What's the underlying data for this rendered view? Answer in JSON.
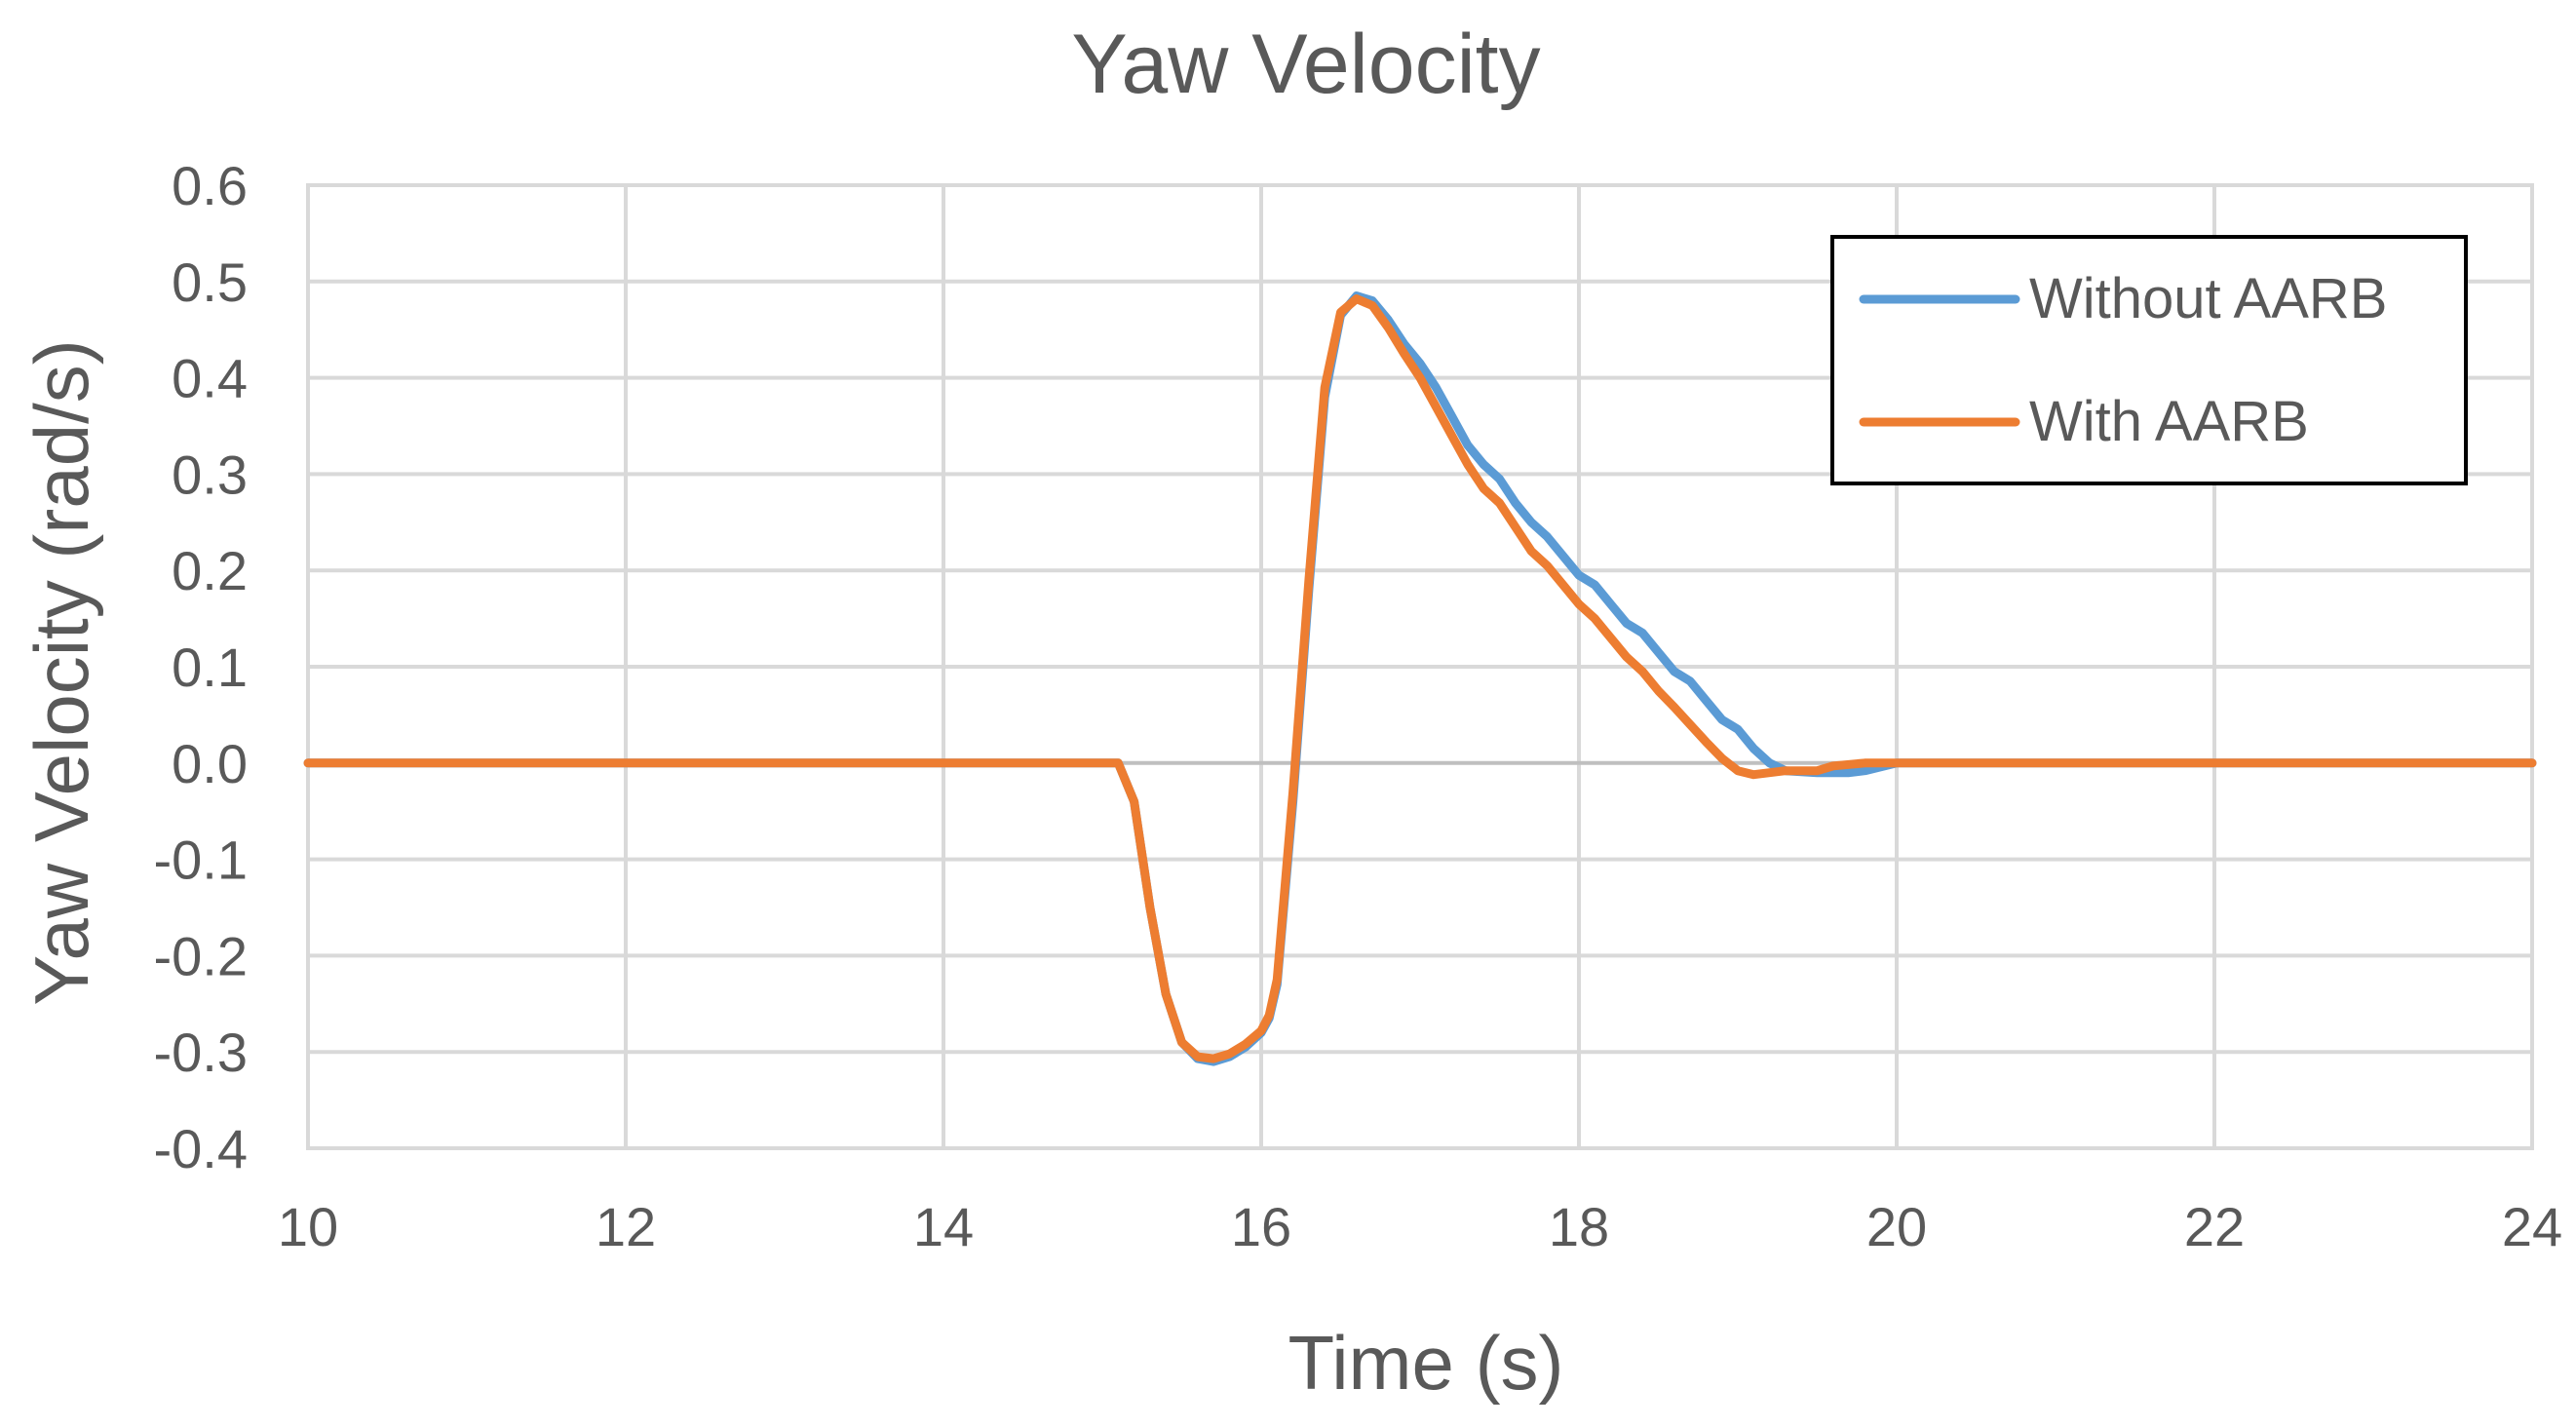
{
  "chart_data": {
    "type": "line",
    "title": "Yaw Velocity",
    "xlabel": "Time (s)",
    "ylabel": "Yaw Velocity (rad/s)",
    "xlim": [
      10,
      24
    ],
    "ylim": [
      -0.4,
      0.6
    ],
    "xticks": [
      10,
      12,
      14,
      16,
      18,
      20,
      22,
      24
    ],
    "xtick_labels": [
      "10",
      "12",
      "14",
      "16",
      "18",
      "20",
      "22",
      "24"
    ],
    "yticks": [
      -0.4,
      -0.3,
      -0.2,
      -0.1,
      0.0,
      0.1,
      0.2,
      0.3,
      0.4,
      0.5,
      0.6
    ],
    "ytick_labels": [
      "-0.4",
      "-0.3",
      "-0.2",
      "-0.1",
      "0.0",
      "0.1",
      "0.2",
      "0.3",
      "0.4",
      "0.5",
      "0.6"
    ],
    "grid": true,
    "legend_position": "top-right",
    "series": [
      {
        "name": "Without AARB",
        "color": "#5b9bd5",
        "points": [
          [
            10,
            0
          ],
          [
            15.0,
            0
          ],
          [
            15.1,
            0
          ],
          [
            15.2,
            -0.04
          ],
          [
            15.3,
            -0.15
          ],
          [
            15.4,
            -0.24
          ],
          [
            15.5,
            -0.29
          ],
          [
            15.6,
            -0.307
          ],
          [
            15.7,
            -0.31
          ],
          [
            15.8,
            -0.305
          ],
          [
            15.9,
            -0.295
          ],
          [
            16.0,
            -0.28
          ],
          [
            16.05,
            -0.265
          ],
          [
            16.1,
            -0.23
          ],
          [
            16.2,
            -0.04
          ],
          [
            16.3,
            0.18
          ],
          [
            16.4,
            0.38
          ],
          [
            16.5,
            0.465
          ],
          [
            16.6,
            0.485
          ],
          [
            16.7,
            0.48
          ],
          [
            16.8,
            0.46
          ],
          [
            16.9,
            0.435
          ],
          [
            17.0,
            0.415
          ],
          [
            17.1,
            0.39
          ],
          [
            17.2,
            0.36
          ],
          [
            17.3,
            0.33
          ],
          [
            17.4,
            0.31
          ],
          [
            17.5,
            0.295
          ],
          [
            17.6,
            0.27
          ],
          [
            17.7,
            0.25
          ],
          [
            17.8,
            0.235
          ],
          [
            17.9,
            0.215
          ],
          [
            18.0,
            0.195
          ],
          [
            18.1,
            0.185
          ],
          [
            18.2,
            0.165
          ],
          [
            18.3,
            0.145
          ],
          [
            18.4,
            0.135
          ],
          [
            18.5,
            0.115
          ],
          [
            18.6,
            0.095
          ],
          [
            18.7,
            0.085
          ],
          [
            18.8,
            0.065
          ],
          [
            18.9,
            0.045
          ],
          [
            19.0,
            0.035
          ],
          [
            19.1,
            0.015
          ],
          [
            19.2,
            0.0
          ],
          [
            19.3,
            -0.008
          ],
          [
            19.5,
            -0.01
          ],
          [
            19.7,
            -0.01
          ],
          [
            19.8,
            -0.008
          ],
          [
            20.0,
            0.0
          ],
          [
            24,
            0.0
          ]
        ]
      },
      {
        "name": "With AARB",
        "color": "#ed7d31",
        "points": [
          [
            10,
            0
          ],
          [
            15.0,
            0
          ],
          [
            15.1,
            0
          ],
          [
            15.2,
            -0.04
          ],
          [
            15.3,
            -0.15
          ],
          [
            15.4,
            -0.24
          ],
          [
            15.5,
            -0.29
          ],
          [
            15.6,
            -0.305
          ],
          [
            15.7,
            -0.307
          ],
          [
            15.8,
            -0.302
          ],
          [
            15.9,
            -0.292
          ],
          [
            16.0,
            -0.278
          ],
          [
            16.05,
            -0.262
          ],
          [
            16.1,
            -0.225
          ],
          [
            16.2,
            -0.03
          ],
          [
            16.3,
            0.19
          ],
          [
            16.4,
            0.39
          ],
          [
            16.5,
            0.468
          ],
          [
            16.6,
            0.482
          ],
          [
            16.7,
            0.475
          ],
          [
            16.8,
            0.452
          ],
          [
            16.9,
            0.425
          ],
          [
            17.0,
            0.4
          ],
          [
            17.1,
            0.37
          ],
          [
            17.2,
            0.34
          ],
          [
            17.3,
            0.31
          ],
          [
            17.4,
            0.285
          ],
          [
            17.5,
            0.27
          ],
          [
            17.6,
            0.245
          ],
          [
            17.7,
            0.22
          ],
          [
            17.8,
            0.205
          ],
          [
            17.9,
            0.185
          ],
          [
            18.0,
            0.165
          ],
          [
            18.1,
            0.15
          ],
          [
            18.2,
            0.13
          ],
          [
            18.3,
            0.11
          ],
          [
            18.4,
            0.095
          ],
          [
            18.5,
            0.075
          ],
          [
            18.6,
            0.058
          ],
          [
            18.7,
            0.04
          ],
          [
            18.8,
            0.022
          ],
          [
            18.9,
            0.005
          ],
          [
            19.0,
            -0.008
          ],
          [
            19.1,
            -0.012
          ],
          [
            19.2,
            -0.01
          ],
          [
            19.3,
            -0.008
          ],
          [
            19.5,
            -0.008
          ],
          [
            19.6,
            -0.003
          ],
          [
            19.8,
            0.0
          ],
          [
            20.0,
            0.0
          ],
          [
            24,
            0.0
          ]
        ]
      }
    ]
  }
}
